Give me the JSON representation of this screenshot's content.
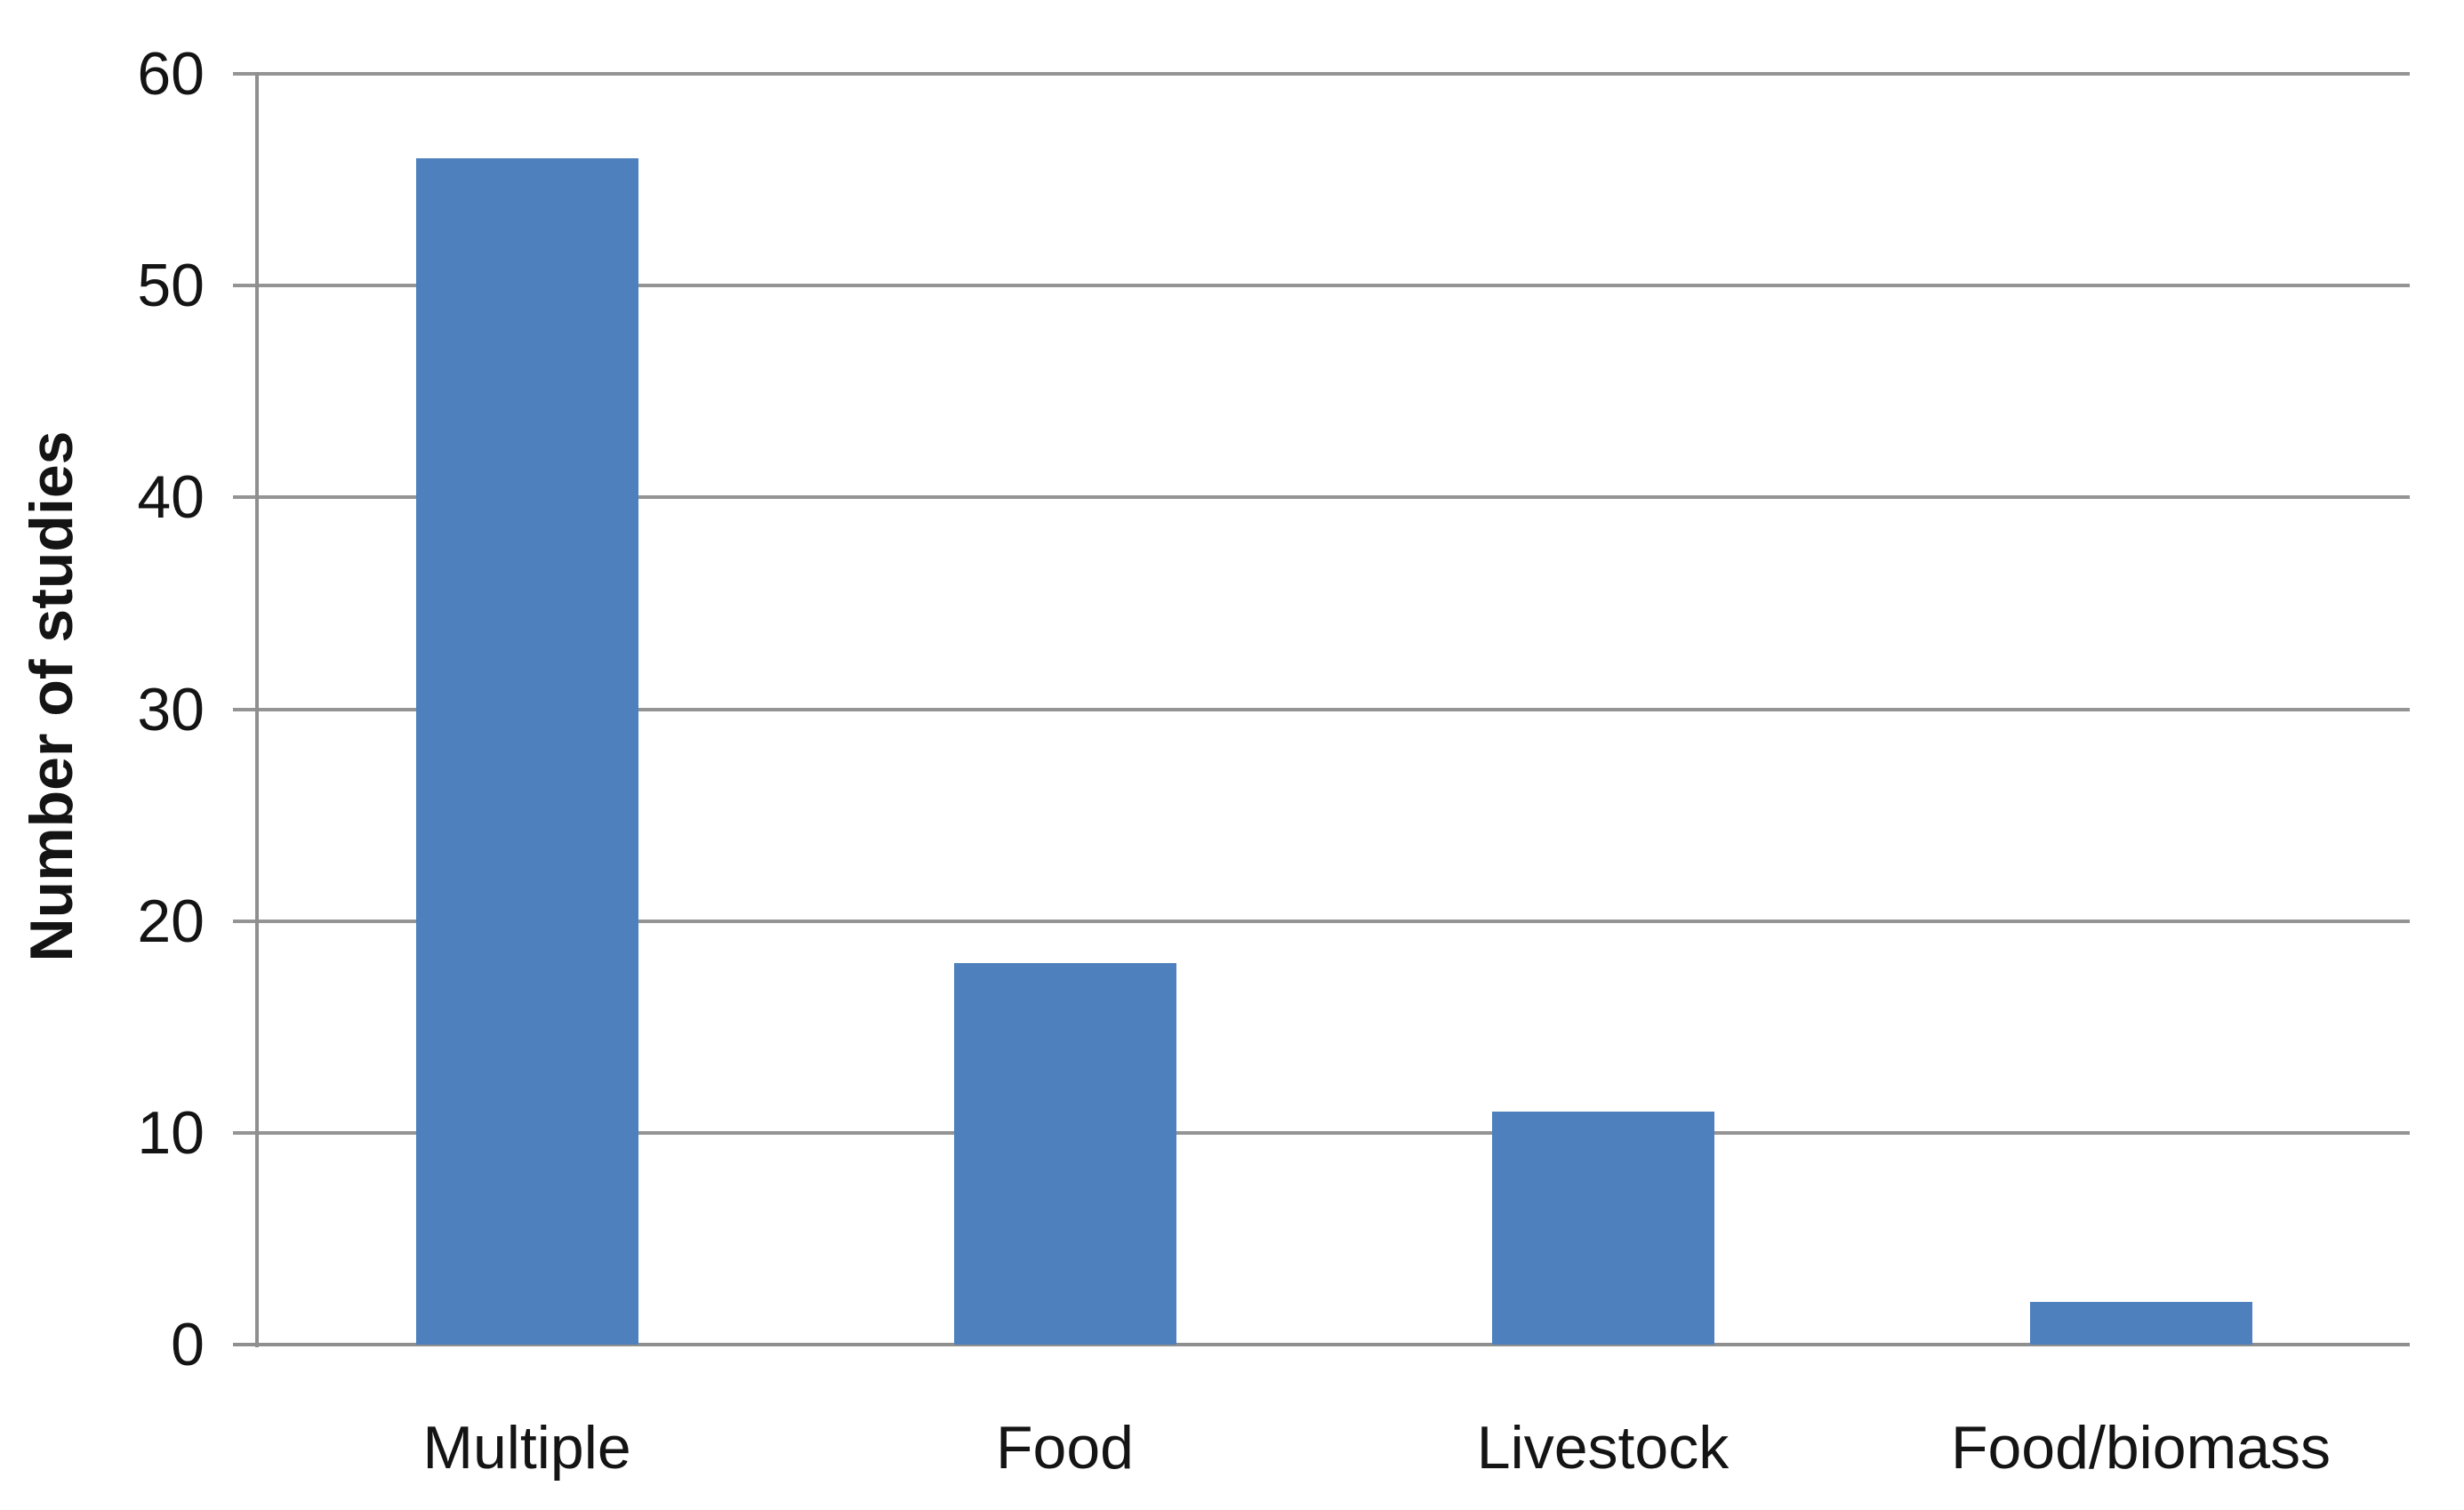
{
  "chart_data": {
    "type": "bar",
    "title": "",
    "categories": [
      "Multiple",
      "Food",
      "Livestock",
      "Food/biomass"
    ],
    "values": [
      56,
      18,
      11,
      2
    ],
    "xlabel": "",
    "ylabel": "Number of studies",
    "ylim": [
      0,
      60
    ],
    "yticks": [
      0,
      10,
      20,
      30,
      40,
      50,
      60
    ],
    "grid": "horizontal-gridlines",
    "legend": "none",
    "bar_color": "#4d80bd",
    "gridline_color": "#949494",
    "axis_color": "#8f8f8f",
    "text_color": "#141414",
    "background": "#ffffff"
  }
}
